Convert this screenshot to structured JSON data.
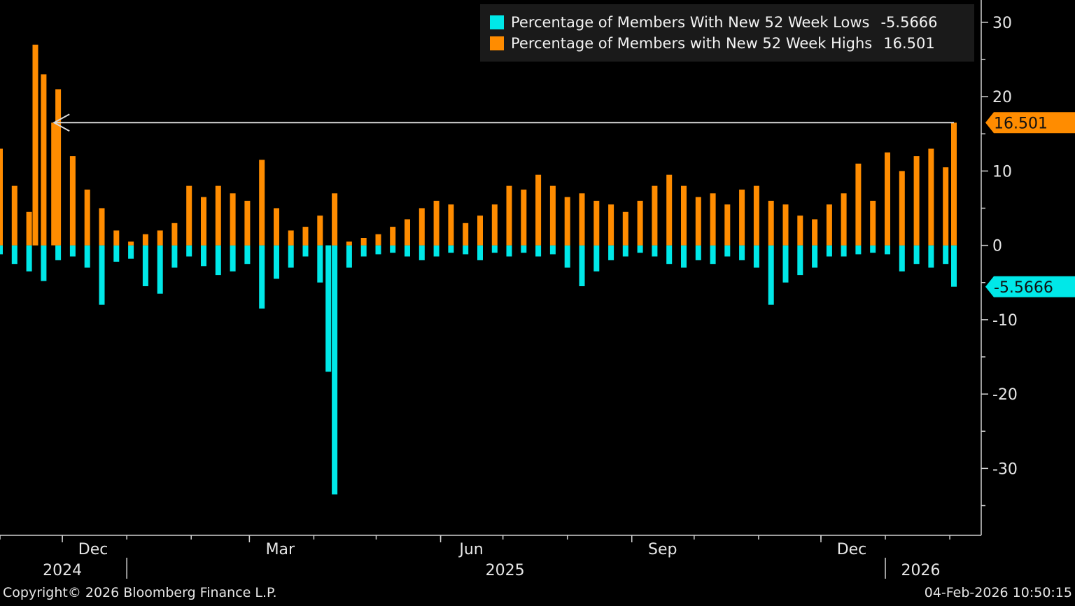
{
  "colors": {
    "highs": "#ff8c00",
    "lows": "#00e8e8",
    "background": "#000000",
    "axis": "#d0d0d0",
    "reference_line": "#d9d9d9"
  },
  "legend": {
    "items": [
      {
        "label": "Percentage of Members With New 52 Week Lows",
        "value": "-5.5666",
        "color_key": "lows"
      },
      {
        "label": "Percentage of Members with New 52 Week Highs",
        "value": "16.501",
        "color_key": "highs"
      }
    ]
  },
  "last_value_tags": {
    "highs": "16.501",
    "lows": "-5.5666"
  },
  "footer": {
    "copyright": "Copyright© 2026 Bloomberg Finance L.P.",
    "timestamp": "04-Feb-2026 10:50:15"
  },
  "chart_data": {
    "type": "bar",
    "title": "",
    "xlabel": "",
    "ylabel": "",
    "ylim": [
      -39,
      33
    ],
    "y_ticks": [
      30,
      20,
      10,
      0,
      -10,
      -20,
      -30
    ],
    "y_tick_labels": [
      "30",
      "20",
      "10",
      "0",
      "-10",
      "-20",
      "-30"
    ],
    "x_range": [
      "2024-11-01",
      "2026-02-04"
    ],
    "x_tick_labels": [
      {
        "date": "2024-12-01",
        "label": "Dec"
      },
      {
        "date": "2025-03-01",
        "label": "Mar"
      },
      {
        "date": "2025-06-01",
        "label": "Jun"
      },
      {
        "date": "2025-09-01",
        "label": "Sep"
      },
      {
        "date": "2025-12-01",
        "label": "Dec"
      }
    ],
    "year_labels": [
      {
        "label": "2024",
        "from": "2024-11-01",
        "to": "2024-12-31"
      },
      {
        "label": "2025",
        "from": "2025-01-01",
        "to": "2025-12-31"
      },
      {
        "label": "2026",
        "from": "2026-01-01",
        "to": "2026-02-04"
      }
    ],
    "reference_line": {
      "y": 16.501,
      "from": "2024-11-27",
      "to": "2026-02-03"
    },
    "series": [
      {
        "name": "Percentage of Members With New 52 Week Lows",
        "color_key": "lows",
        "x": [
          "2024-11-01",
          "2024-11-08",
          "2024-11-15",
          "2024-11-22",
          "2024-11-29",
          "2024-12-06",
          "2024-12-13",
          "2024-12-20",
          "2024-12-27",
          "2025-01-03",
          "2025-01-10",
          "2025-01-17",
          "2025-01-24",
          "2025-01-31",
          "2025-02-07",
          "2025-02-14",
          "2025-02-21",
          "2025-02-28",
          "2025-03-07",
          "2025-03-14",
          "2025-03-21",
          "2025-03-28",
          "2025-04-04",
          "2025-04-08",
          "2025-04-11",
          "2025-04-18",
          "2025-04-25",
          "2025-05-02",
          "2025-05-09",
          "2025-05-16",
          "2025-05-23",
          "2025-05-30",
          "2025-06-06",
          "2025-06-13",
          "2025-06-20",
          "2025-06-27",
          "2025-07-04",
          "2025-07-11",
          "2025-07-18",
          "2025-07-25",
          "2025-08-01",
          "2025-08-08",
          "2025-08-15",
          "2025-08-22",
          "2025-08-29",
          "2025-09-05",
          "2025-09-12",
          "2025-09-19",
          "2025-09-26",
          "2025-10-03",
          "2025-10-10",
          "2025-10-17",
          "2025-10-24",
          "2025-10-31",
          "2025-11-07",
          "2025-11-14",
          "2025-11-21",
          "2025-11-28",
          "2025-12-05",
          "2025-12-12",
          "2025-12-19",
          "2025-12-26",
          "2026-01-02",
          "2026-01-09",
          "2026-01-16",
          "2026-01-23",
          "2026-01-30",
          "2026-02-03"
        ],
        "values": [
          -1.2,
          -2.5,
          -3.5,
          -4.8,
          -2.0,
          -1.5,
          -3.0,
          -8.0,
          -2.2,
          -1.8,
          -5.5,
          -6.5,
          -3.0,
          -1.5,
          -2.8,
          -4.0,
          -3.5,
          -2.5,
          -8.5,
          -4.5,
          -3.0,
          -1.5,
          -5.0,
          -17.0,
          -33.5,
          -3.0,
          -1.5,
          -1.2,
          -1.0,
          -1.5,
          -2.0,
          -1.5,
          -1.0,
          -1.2,
          -2.0,
          -1.0,
          -1.5,
          -1.0,
          -1.5,
          -1.2,
          -3.0,
          -5.5,
          -3.5,
          -2.0,
          -1.5,
          -1.0,
          -1.5,
          -2.5,
          -3.0,
          -2.0,
          -2.5,
          -1.5,
          -2.0,
          -3.0,
          -8.0,
          -5.0,
          -4.0,
          -3.0,
          -1.5,
          -1.5,
          -1.2,
          -1.0,
          -1.2,
          -3.5,
          -2.5,
          -3.0,
          -2.5,
          -5.5666
        ]
      },
      {
        "name": "Percentage of Members with New 52 Week Highs",
        "color_key": "highs",
        "x": [
          "2024-11-01",
          "2024-11-08",
          "2024-11-15",
          "2024-11-18",
          "2024-11-22",
          "2024-11-27",
          "2024-11-29",
          "2024-12-06",
          "2024-12-13",
          "2024-12-20",
          "2024-12-27",
          "2025-01-03",
          "2025-01-10",
          "2025-01-17",
          "2025-01-24",
          "2025-01-31",
          "2025-02-07",
          "2025-02-14",
          "2025-02-21",
          "2025-02-28",
          "2025-03-07",
          "2025-03-14",
          "2025-03-21",
          "2025-03-28",
          "2025-04-04",
          "2025-04-11",
          "2025-04-18",
          "2025-04-25",
          "2025-05-02",
          "2025-05-09",
          "2025-05-16",
          "2025-05-23",
          "2025-05-30",
          "2025-06-06",
          "2025-06-13",
          "2025-06-20",
          "2025-06-27",
          "2025-07-04",
          "2025-07-11",
          "2025-07-18",
          "2025-07-25",
          "2025-08-01",
          "2025-08-08",
          "2025-08-15",
          "2025-08-22",
          "2025-08-29",
          "2025-09-05",
          "2025-09-12",
          "2025-09-19",
          "2025-09-26",
          "2025-10-03",
          "2025-10-10",
          "2025-10-17",
          "2025-10-24",
          "2025-10-31",
          "2025-11-07",
          "2025-11-14",
          "2025-11-21",
          "2025-11-28",
          "2025-12-05",
          "2025-12-12",
          "2025-12-19",
          "2025-12-26",
          "2026-01-02",
          "2026-01-09",
          "2026-01-16",
          "2026-01-23",
          "2026-01-30",
          "2026-02-03"
        ],
        "values": [
          13.0,
          8.0,
          4.5,
          27.0,
          23.0,
          16.5,
          21.0,
          12.0,
          7.5,
          5.0,
          2.0,
          0.5,
          1.5,
          2.0,
          3.0,
          8.0,
          6.5,
          8.0,
          7.0,
          6.0,
          11.5,
          5.0,
          2.0,
          2.5,
          4.0,
          7.0,
          0.5,
          1.0,
          1.5,
          2.5,
          3.5,
          5.0,
          6.0,
          5.5,
          3.0,
          4.0,
          5.5,
          8.0,
          7.5,
          9.5,
          8.0,
          6.5,
          7.0,
          6.0,
          5.5,
          4.5,
          6.0,
          8.0,
          9.5,
          8.0,
          6.5,
          7.0,
          5.5,
          7.5,
          8.0,
          6.0,
          5.5,
          4.0,
          3.5,
          5.5,
          7.0,
          11.0,
          6.0,
          12.5,
          10.0,
          12.0,
          13.0,
          10.5,
          16.501
        ]
      }
    ]
  }
}
